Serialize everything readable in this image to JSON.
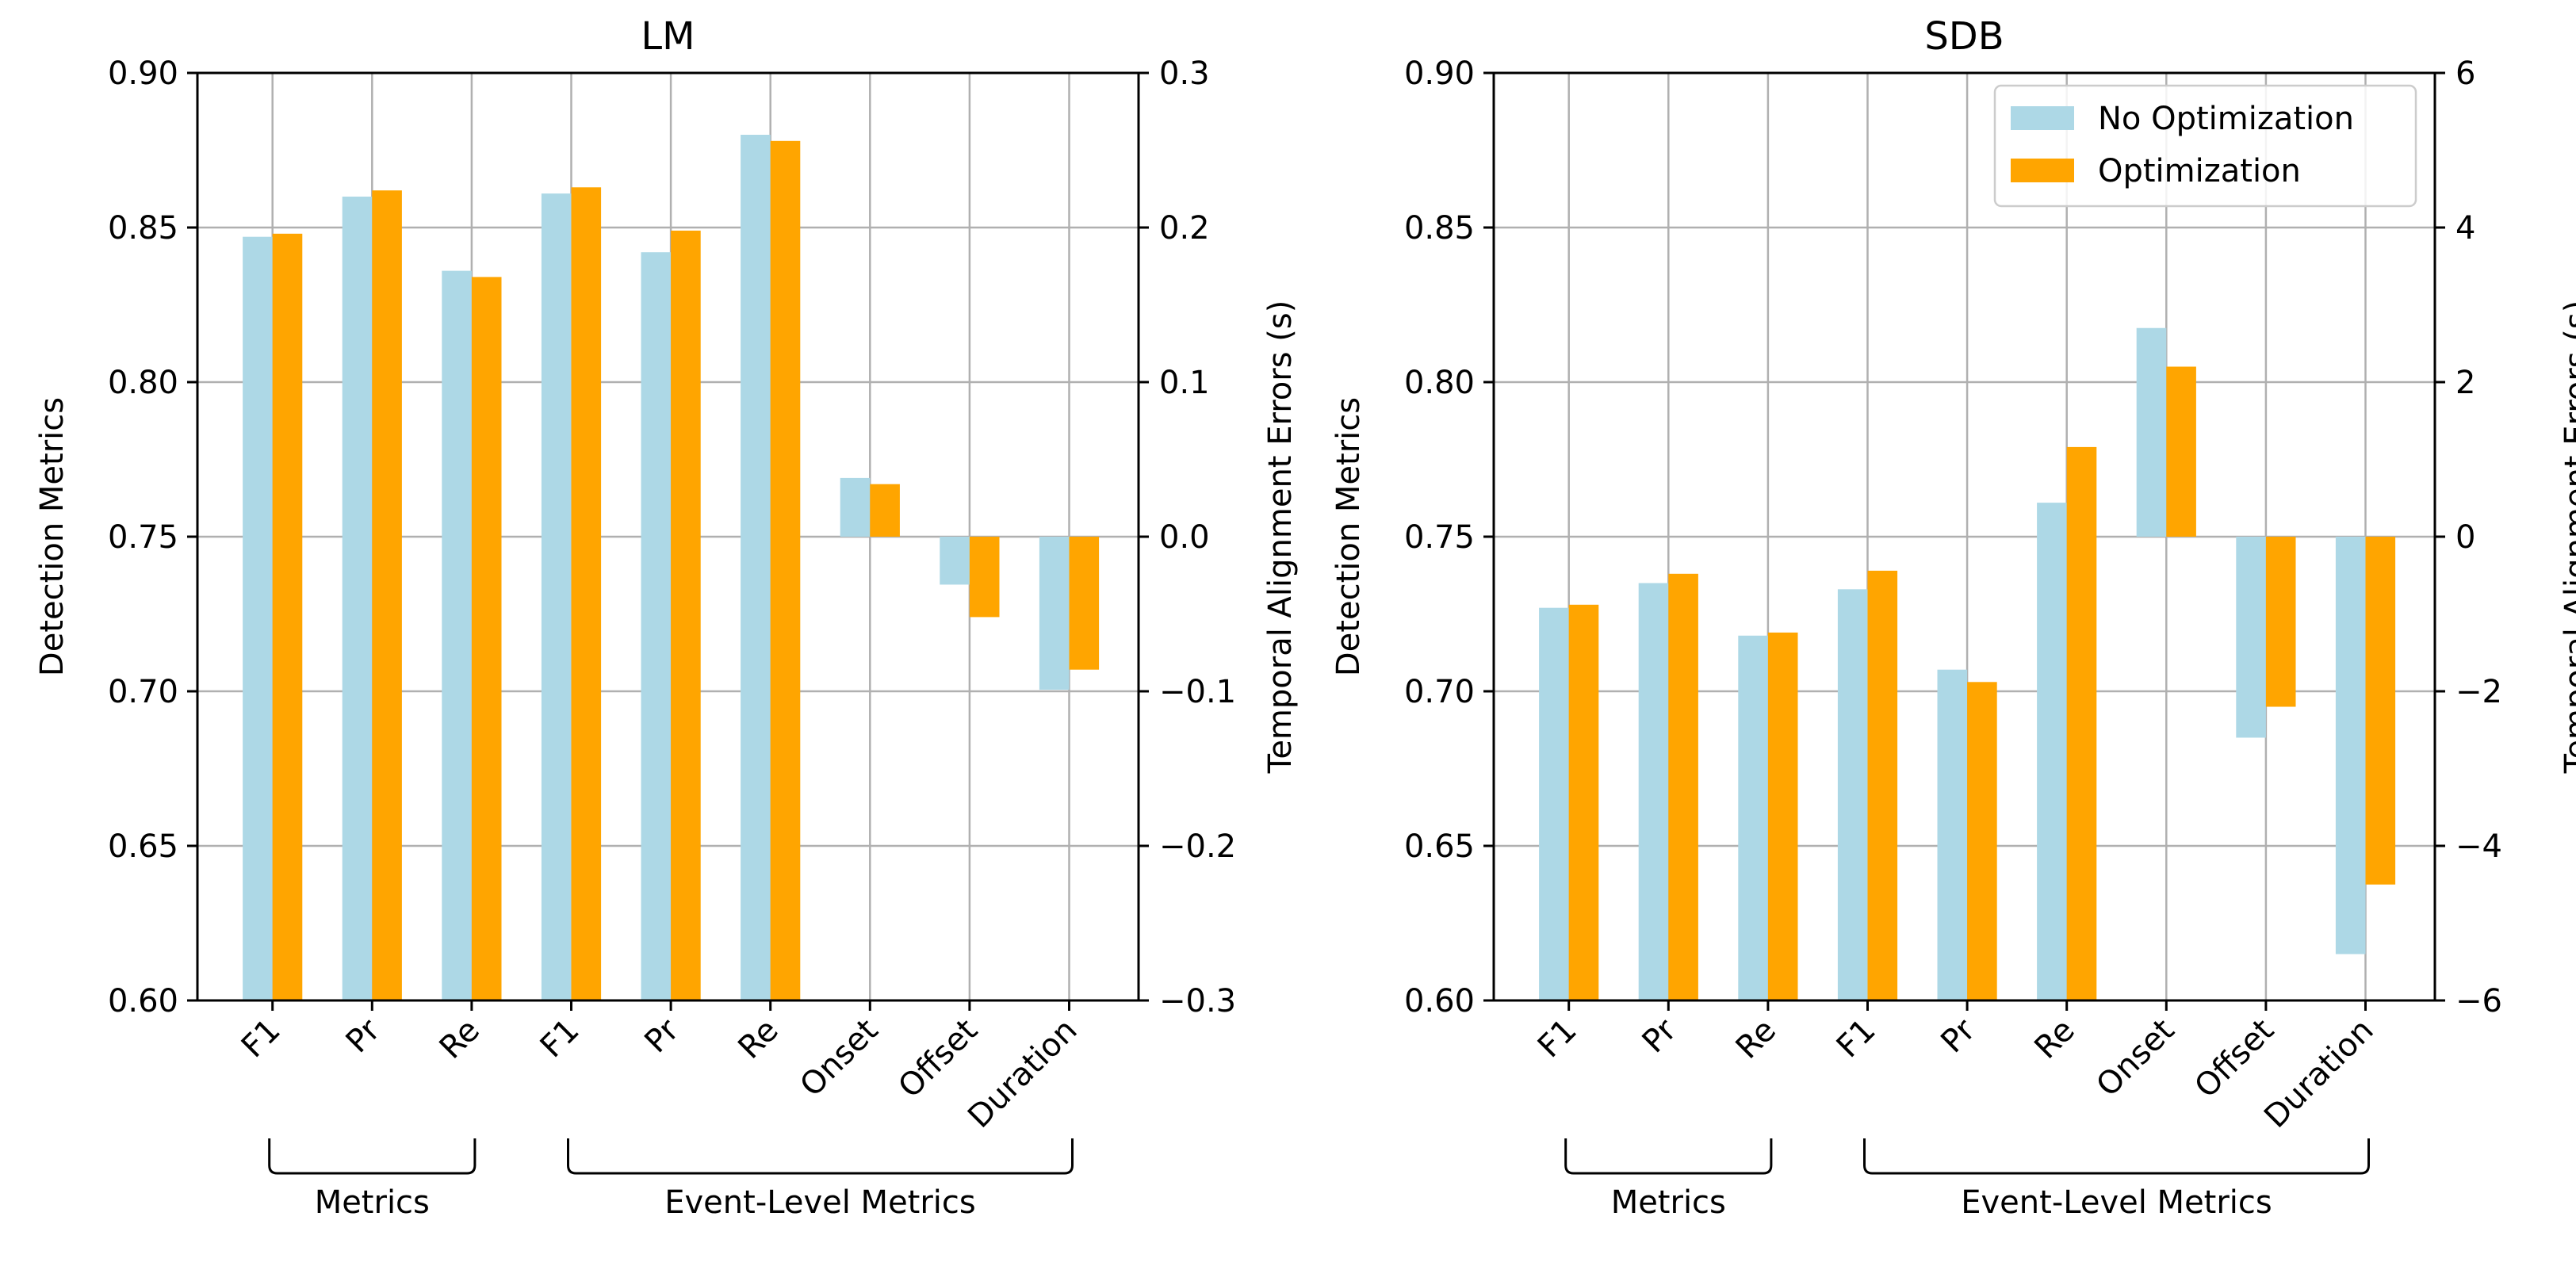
{
  "colors": {
    "no_opt": "#add8e6",
    "opt": "#ffa500",
    "grid": "#b0b0b0",
    "axis": "#000000"
  },
  "legend": {
    "no_opt_label": "No Optimization",
    "opt_label": "Optimization",
    "placement": "upper-right of SDB panel"
  },
  "chart_data": [
    {
      "type": "bar",
      "title": "LM",
      "ylabel": "Detection Metrics",
      "y2label": "Temporal Alignment Errors (s)",
      "ylim": [
        0.6,
        0.9
      ],
      "yticks": [
        "0.60",
        "0.65",
        "0.70",
        "0.75",
        "0.80",
        "0.85",
        "0.90"
      ],
      "y2lim": [
        -0.3,
        0.3
      ],
      "y2ticks": [
        "−0.3",
        "−0.2",
        "−0.1",
        "0.0",
        "0.1",
        "0.2",
        "0.3"
      ],
      "categories": [
        "F1",
        "Pr",
        "Re",
        "F1",
        "Pr",
        "Re",
        "Onset",
        "Offset",
        "Duration"
      ],
      "axis_assignment": [
        "left",
        "left",
        "left",
        "left",
        "left",
        "left",
        "right",
        "right",
        "right"
      ],
      "groups": [
        {
          "label": "Metrics",
          "from": 0,
          "to": 2
        },
        {
          "label": "Event-Level Metrics",
          "from": 3,
          "to": 8
        }
      ],
      "series": [
        {
          "name": "No Optimization",
          "values": [
            0.847,
            0.86,
            0.836,
            0.861,
            0.842,
            0.88,
            0.038,
            -0.031,
            -0.099
          ]
        },
        {
          "name": "Optimization",
          "values": [
            0.848,
            0.862,
            0.834,
            0.863,
            0.849,
            0.878,
            0.034,
            -0.052,
            -0.086
          ]
        }
      ]
    },
    {
      "type": "bar",
      "title": "SDB",
      "ylabel": "Detection Metrics",
      "y2label": "Temporal Alignment Errors (s)",
      "ylim": [
        0.6,
        0.9
      ],
      "yticks": [
        "0.60",
        "0.65",
        "0.70",
        "0.75",
        "0.80",
        "0.85",
        "0.90"
      ],
      "y2lim": [
        -6,
        6
      ],
      "y2ticks": [
        "−6",
        "−4",
        "−2",
        "0",
        "2",
        "4",
        "6"
      ],
      "categories": [
        "F1",
        "Pr",
        "Re",
        "F1",
        "Pr",
        "Re",
        "Onset",
        "Offset",
        "Duration"
      ],
      "axis_assignment": [
        "left",
        "left",
        "left",
        "left",
        "left",
        "left",
        "right",
        "right",
        "right"
      ],
      "groups": [
        {
          "label": "Metrics",
          "from": 0,
          "to": 2
        },
        {
          "label": "Event-Level Metrics",
          "from": 3,
          "to": 8
        }
      ],
      "series": [
        {
          "name": "No Optimization",
          "values": [
            0.727,
            0.735,
            0.718,
            0.733,
            0.707,
            0.761,
            2.7,
            -2.6,
            -5.4
          ]
        },
        {
          "name": "Optimization",
          "values": [
            0.728,
            0.738,
            0.719,
            0.739,
            0.703,
            0.779,
            2.2,
            -2.2,
            -4.5
          ]
        }
      ]
    }
  ]
}
